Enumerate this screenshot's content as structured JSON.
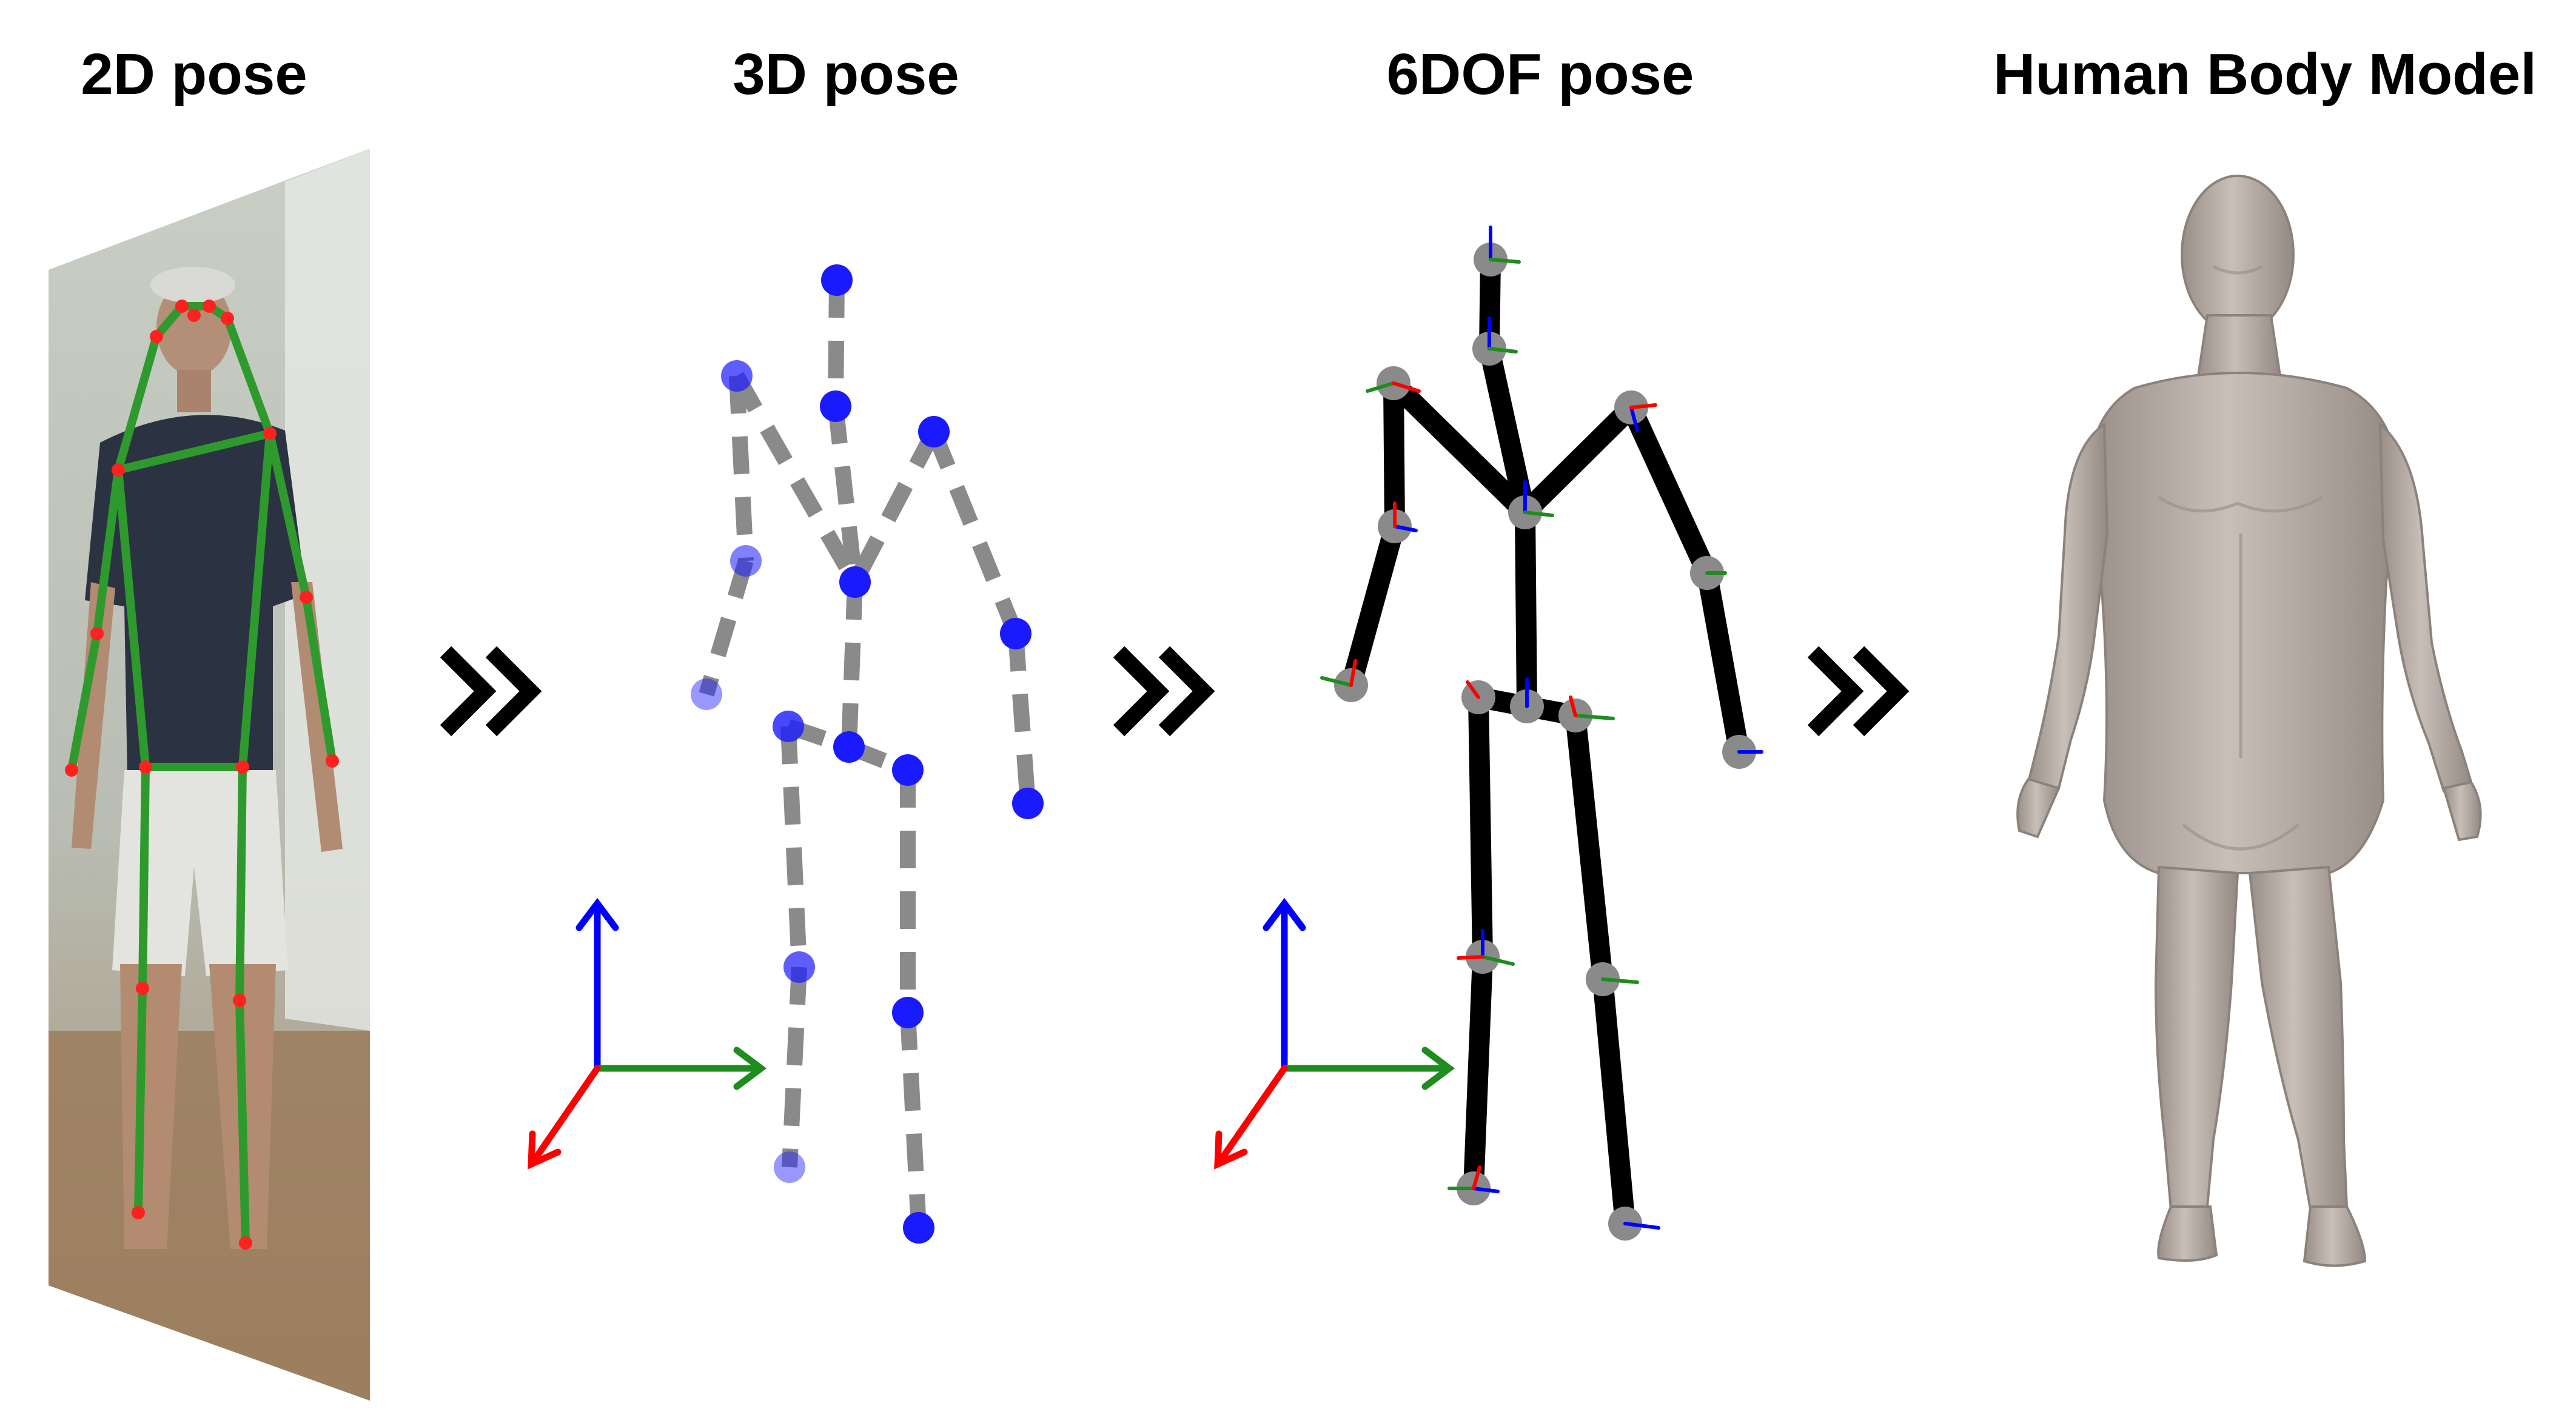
{
  "titles": {
    "pose2d": "2D pose",
    "pose3d": "3D pose",
    "pose6dof": "6DOF pose",
    "body_model": "Human Body Model"
  },
  "colors": {
    "skeleton_2d": "#2e9a2e",
    "joint_2d": "#ff2020",
    "joint_3d": "#1a1aff",
    "bone_3d": "#8a8a8a",
    "bone_6dof": "#000000",
    "joint_6dof": "#8a8a8a",
    "axis_x": "#ff0000",
    "axis_y": "#1e8c1e",
    "axis_z": "#0000ff",
    "body_mesh": "#b5aba4",
    "chevron": "#000000"
  },
  "icons": {
    "step_arrow": "double-chevron-right-icon",
    "axes": "xyz-axes-icon"
  }
}
